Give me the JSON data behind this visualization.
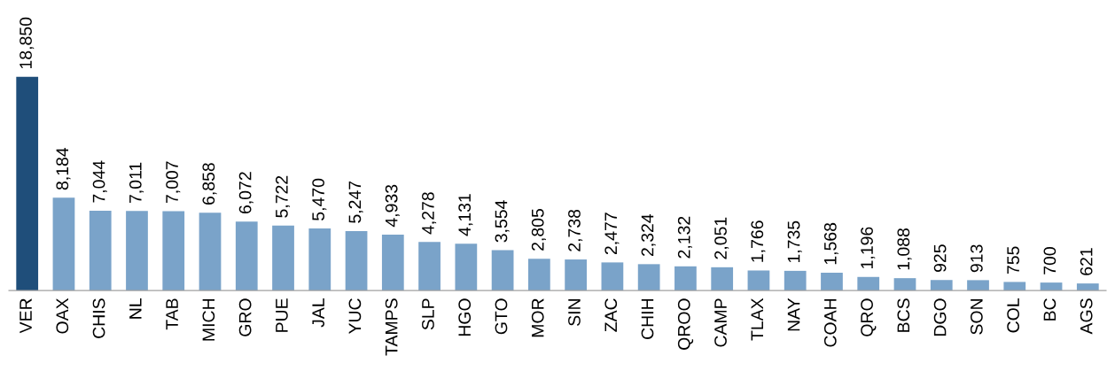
{
  "chart_data": {
    "type": "bar",
    "categories": [
      "VER",
      "OAX",
      "CHIS",
      "NL",
      "TAB",
      "MICH",
      "GRO",
      "PUE",
      "JAL",
      "YUC",
      "TAMPS",
      "SLP",
      "HGO",
      "GTO",
      "MOR",
      "SIN",
      "ZAC",
      "CHIH",
      "QROO",
      "CAMP",
      "TLAX",
      "NAY",
      "COAH",
      "QRO",
      "BCS",
      "DGO",
      "SON",
      "COL",
      "BC",
      "AGS"
    ],
    "values": [
      18850,
      8184,
      7044,
      7011,
      7007,
      6858,
      6072,
      5722,
      5470,
      5247,
      4933,
      4278,
      4131,
      3554,
      2805,
      2738,
      2477,
      2324,
      2132,
      2051,
      1766,
      1735,
      1568,
      1196,
      1088,
      925,
      913,
      755,
      700,
      621
    ],
    "value_labels": [
      "18,850",
      "8,184",
      "7,044",
      "7,011",
      "7,007",
      "6,858",
      "6,072",
      "5,722",
      "5,470",
      "5,247",
      "4,933",
      "4,278",
      "4,131",
      "3,554",
      "2,805",
      "2,738",
      "2,477",
      "2,324",
      "2,132",
      "2,051",
      "1,766",
      "1,735",
      "1,568",
      "1,196",
      "1,088",
      "925",
      "913",
      "755",
      "700",
      "621"
    ],
    "colors": [
      "#1f4e7a",
      "#7aa3c9",
      "#7aa3c9",
      "#7aa3c9",
      "#7aa3c9",
      "#7aa3c9",
      "#7aa3c9",
      "#7aa3c9",
      "#7aa3c9",
      "#7aa3c9",
      "#7aa3c9",
      "#7aa3c9",
      "#7aa3c9",
      "#7aa3c9",
      "#7aa3c9",
      "#7aa3c9",
      "#7aa3c9",
      "#7aa3c9",
      "#7aa3c9",
      "#7aa3c9",
      "#7aa3c9",
      "#7aa3c9",
      "#7aa3c9",
      "#7aa3c9",
      "#7aa3c9",
      "#7aa3c9",
      "#7aa3c9",
      "#7aa3c9",
      "#7aa3c9",
      "#7aa3c9"
    ],
    "grid": false,
    "legend": false
  }
}
